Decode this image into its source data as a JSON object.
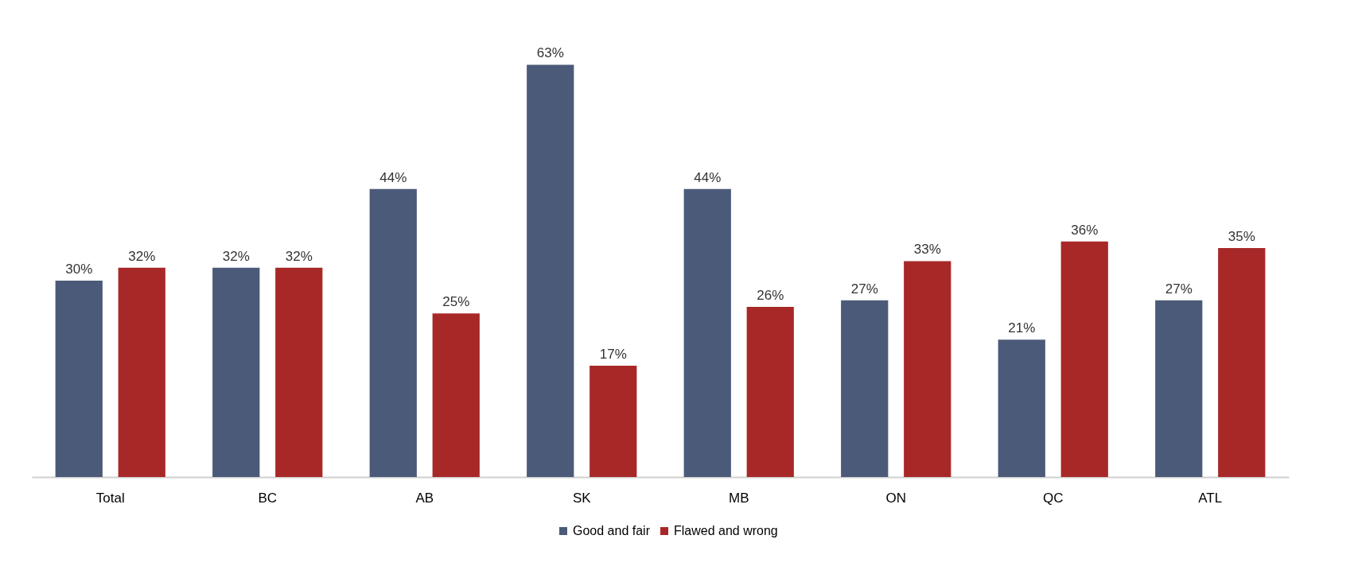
{
  "chart_data": {
    "type": "bar",
    "categories": [
      "Total",
      "BC",
      "AB",
      "SK",
      "MB",
      "ON",
      "QC",
      "ATL"
    ],
    "series": [
      {
        "name": "Good and fair",
        "color": "#4b5a78",
        "values": [
          30,
          32,
          44,
          63,
          44,
          27,
          21,
          27
        ],
        "value_labels": [
          "30%",
          "32%",
          "44%",
          "63%",
          "44%",
          "27%",
          "21%",
          "27%"
        ]
      },
      {
        "name": "Flawed and wrong",
        "color": "#a82828",
        "values": [
          32,
          32,
          25,
          17,
          26,
          33,
          36,
          35
        ],
        "value_labels": [
          "32%",
          "32%",
          "25%",
          "17%",
          "26%",
          "33%",
          "36%",
          "35%"
        ]
      }
    ],
    "tick_labels": "x",
    "grid": false,
    "legend": "bottom"
  }
}
